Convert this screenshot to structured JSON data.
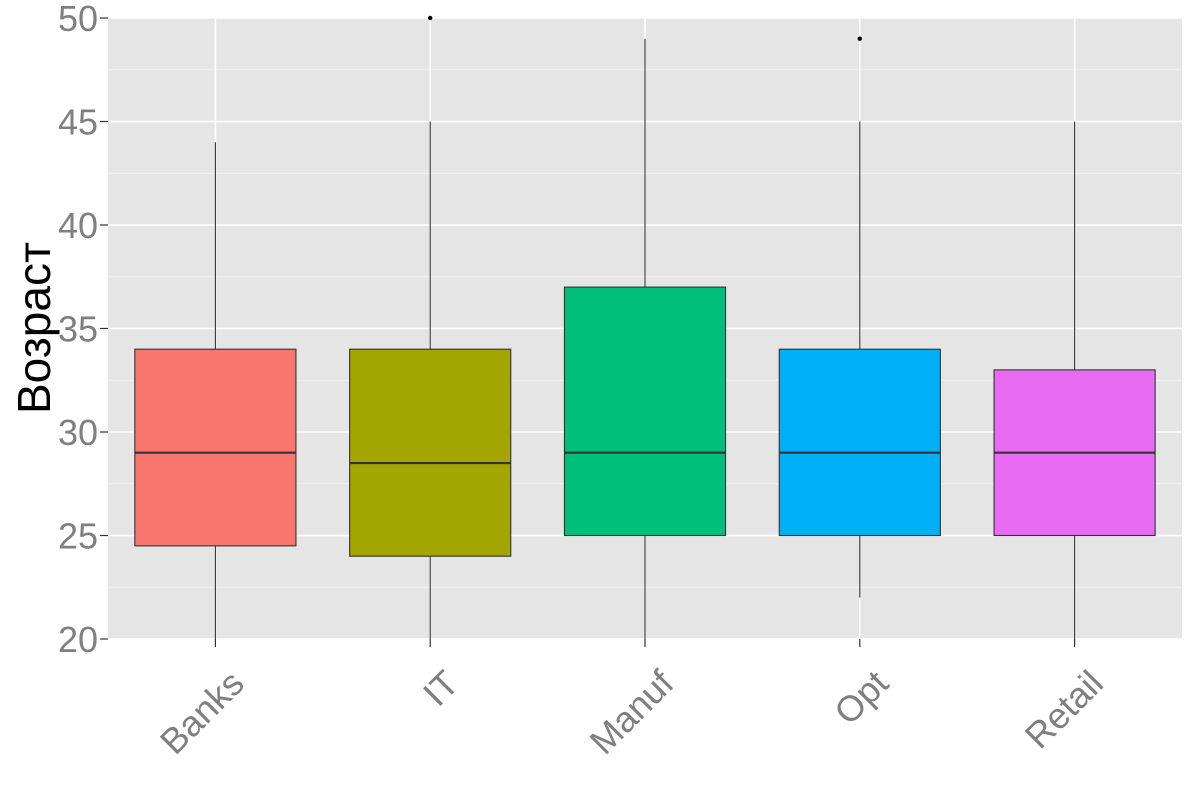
{
  "chart_data": {
    "type": "boxplot",
    "title": "",
    "xlabel": "",
    "ylabel": "Возраст",
    "ylim": [
      20,
      50
    ],
    "y_ticks": [
      20,
      25,
      30,
      35,
      40,
      45,
      50
    ],
    "grid": true,
    "legend": "none",
    "background_color": "#e5e5e5",
    "gridline_color": "#ffffff",
    "categories": [
      "Banks",
      "IT",
      "Manuf",
      "Opt",
      "Retail"
    ],
    "boxes": [
      {
        "category": "Banks",
        "color": "#f8766d",
        "lower_whisker": 20,
        "q1": 24.5,
        "median": 29,
        "q3": 34,
        "upper_whisker": 44,
        "outliers": []
      },
      {
        "category": "IT",
        "color": "#a3a500",
        "lower_whisker": 20,
        "q1": 24,
        "median": 28.5,
        "q3": 34,
        "upper_whisker": 45,
        "outliers": [
          50
        ]
      },
      {
        "category": "Manuf",
        "color": "#00bf7d",
        "lower_whisker": 20,
        "q1": 25,
        "median": 29,
        "q3": 37,
        "upper_whisker": 49,
        "outliers": []
      },
      {
        "category": "Opt",
        "color": "#00b0f6",
        "lower_whisker": 22,
        "q1": 25,
        "median": 29,
        "q3": 34,
        "upper_whisker": 45,
        "outliers": [
          49
        ]
      },
      {
        "category": "Retail",
        "color": "#e76bf3",
        "lower_whisker": 20,
        "q1": 25,
        "median": 29,
        "q3": 33,
        "upper_whisker": 45,
        "outliers": []
      }
    ]
  }
}
